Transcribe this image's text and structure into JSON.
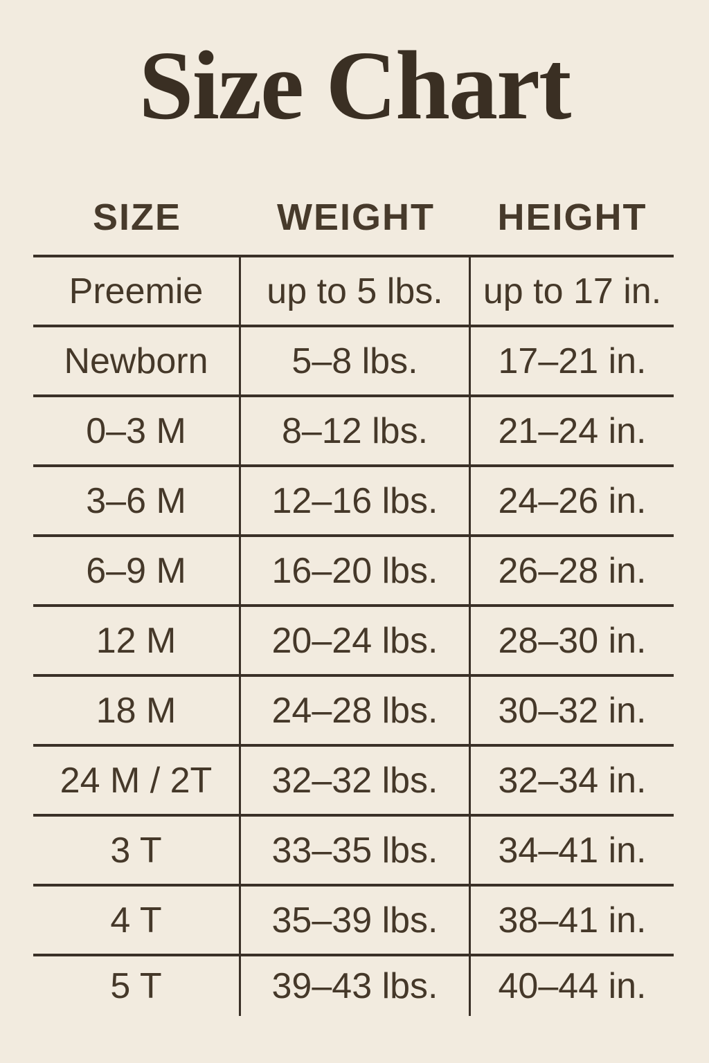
{
  "page": {
    "background_color": "#f2ebdf",
    "text_color": "#453829",
    "line_color": "#3a3027",
    "title_color": "#3a2f23"
  },
  "chart_data": {
    "type": "table",
    "title": "Size Chart",
    "columns": [
      "SIZE",
      "WEIGHT",
      "HEIGHT"
    ],
    "rows": [
      [
        "Preemie",
        "up to 5 lbs.",
        "up to 17 in."
      ],
      [
        "Newborn",
        "5–8 lbs.",
        "17–21 in."
      ],
      [
        "0–3 M",
        "8–12 lbs.",
        "21–24 in."
      ],
      [
        "3–6 M",
        "12–16 lbs.",
        "24–26 in."
      ],
      [
        "6–9 M",
        "16–20 lbs.",
        "26–28 in."
      ],
      [
        "12 M",
        "20–24 lbs.",
        "28–30 in."
      ],
      [
        "18 M",
        "24–28 lbs.",
        "30–32 in."
      ],
      [
        "24 M / 2T",
        "32–32 lbs.",
        "32–34 in."
      ],
      [
        "3 T",
        "33–35 lbs.",
        "34–41 in."
      ],
      [
        "4 T",
        "35–39 lbs.",
        "38–41 in."
      ],
      [
        "5 T",
        "39–43 lbs.",
        "40–44 in."
      ]
    ]
  }
}
